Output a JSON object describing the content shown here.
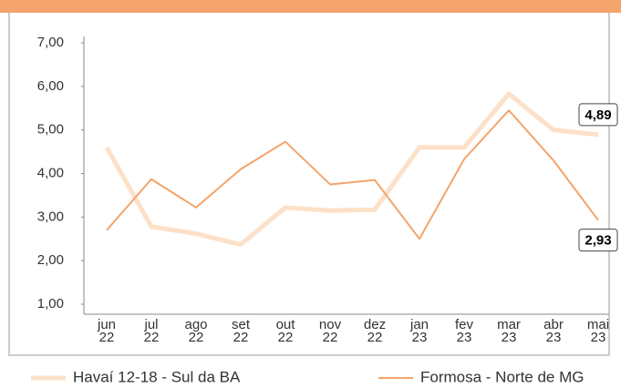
{
  "chart_data": {
    "type": "line",
    "categories": [
      "jun 22",
      "jul 22",
      "ago 22",
      "set 22",
      "out 22",
      "nov 22",
      "dez 22",
      "jan 23",
      "fev 23",
      "mar 23",
      "abr 23",
      "mai 23"
    ],
    "series": [
      {
        "name": "Havaí 12-18 - Sul da BA",
        "color": "#fde0c8",
        "values": [
          4.6,
          2.78,
          2.62,
          2.37,
          3.22,
          3.15,
          3.17,
          4.6,
          4.6,
          5.83,
          5.0,
          4.89
        ],
        "value_labels": [
          null,
          null,
          null,
          null,
          null,
          null,
          null,
          null,
          null,
          null,
          null,
          "4,89"
        ]
      },
      {
        "name": "Formosa - Norte de MG",
        "color": "#f4a46c",
        "values": [
          2.7,
          3.87,
          3.22,
          4.1,
          4.73,
          3.75,
          3.85,
          2.5,
          4.33,
          5.45,
          4.3,
          2.93
        ],
        "value_labels": [
          null,
          null,
          null,
          null,
          null,
          null,
          null,
          null,
          null,
          null,
          null,
          "2,93"
        ]
      }
    ],
    "ylim": [
      1,
      7
    ],
    "yticks": [
      {
        "value": 1,
        "label": "1,00"
      },
      {
        "value": 2,
        "label": "2,00"
      },
      {
        "value": 3,
        "label": "3,00"
      },
      {
        "value": 4,
        "label": "4,00"
      },
      {
        "value": 5,
        "label": "5,00"
      },
      {
        "value": 6,
        "label": "6,00"
      },
      {
        "value": 7,
        "label": "7,00"
      }
    ],
    "grid": false,
    "legend": "bottom"
  }
}
